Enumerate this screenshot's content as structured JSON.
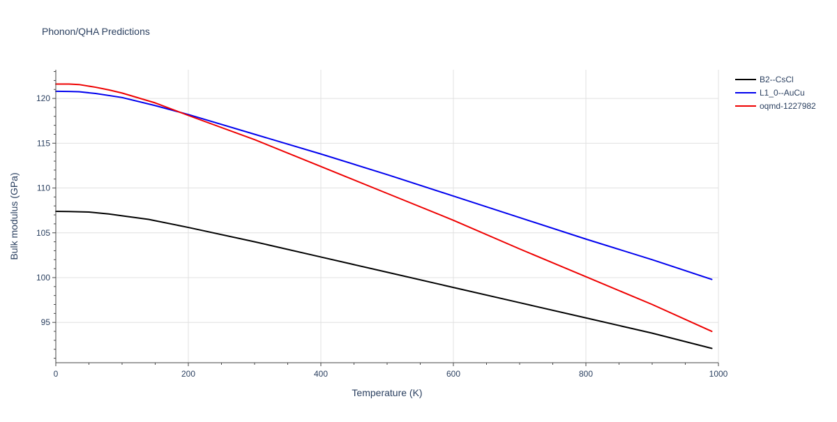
{
  "chart_data": {
    "type": "line",
    "title": "Phonon/QHA Predictions",
    "xlabel": "Temperature (K)",
    "ylabel": "Bulk modulus (GPa)",
    "xlim": [
      0,
      1000
    ],
    "ylim": [
      90.5,
      123.2
    ],
    "x_ticks": [
      0,
      200,
      400,
      600,
      800,
      1000
    ],
    "x_tick_labels": [
      "0",
      "200",
      "400",
      "600",
      "800",
      "1000"
    ],
    "y_ticks": [
      95,
      100,
      105,
      110,
      115,
      120
    ],
    "y_tick_labels": [
      "95",
      "100",
      "105",
      "110",
      "115",
      "120"
    ],
    "grid": true,
    "legend_position": "right",
    "series": [
      {
        "name": "B2--CsCl",
        "color": "#000000",
        "points": [
          [
            0,
            107.4
          ],
          [
            20,
            107.38
          ],
          [
            50,
            107.32
          ],
          [
            80,
            107.1
          ],
          [
            100,
            106.9
          ],
          [
            140,
            106.5
          ],
          [
            200,
            105.6
          ],
          [
            300,
            104.0
          ],
          [
            400,
            102.3
          ],
          [
            500,
            100.6
          ],
          [
            600,
            98.9
          ],
          [
            700,
            97.2
          ],
          [
            800,
            95.5
          ],
          [
            900,
            93.8
          ],
          [
            990,
            92.1
          ]
        ]
      },
      {
        "name": "L1_0--AuCu",
        "color": "#0000ee",
        "points": [
          [
            0,
            120.8
          ],
          [
            20,
            120.78
          ],
          [
            35,
            120.75
          ],
          [
            60,
            120.55
          ],
          [
            100,
            120.1
          ],
          [
            150,
            119.2
          ],
          [
            200,
            118.2
          ],
          [
            300,
            116.0
          ],
          [
            400,
            113.8
          ],
          [
            500,
            111.5
          ],
          [
            600,
            109.1
          ],
          [
            700,
            106.7
          ],
          [
            800,
            104.3
          ],
          [
            900,
            102.0
          ],
          [
            990,
            99.8
          ]
        ]
      },
      {
        "name": "oqmd-1227982",
        "color": "#ee0000",
        "points": [
          [
            0,
            121.6
          ],
          [
            20,
            121.6
          ],
          [
            35,
            121.55
          ],
          [
            60,
            121.25
          ],
          [
            80,
            120.95
          ],
          [
            100,
            120.6
          ],
          [
            150,
            119.5
          ],
          [
            200,
            118.1
          ],
          [
            300,
            115.4
          ],
          [
            400,
            112.4
          ],
          [
            500,
            109.4
          ],
          [
            600,
            106.4
          ],
          [
            700,
            103.2
          ],
          [
            800,
            100.1
          ],
          [
            900,
            97.0
          ],
          [
            990,
            94.0
          ]
        ]
      }
    ]
  }
}
